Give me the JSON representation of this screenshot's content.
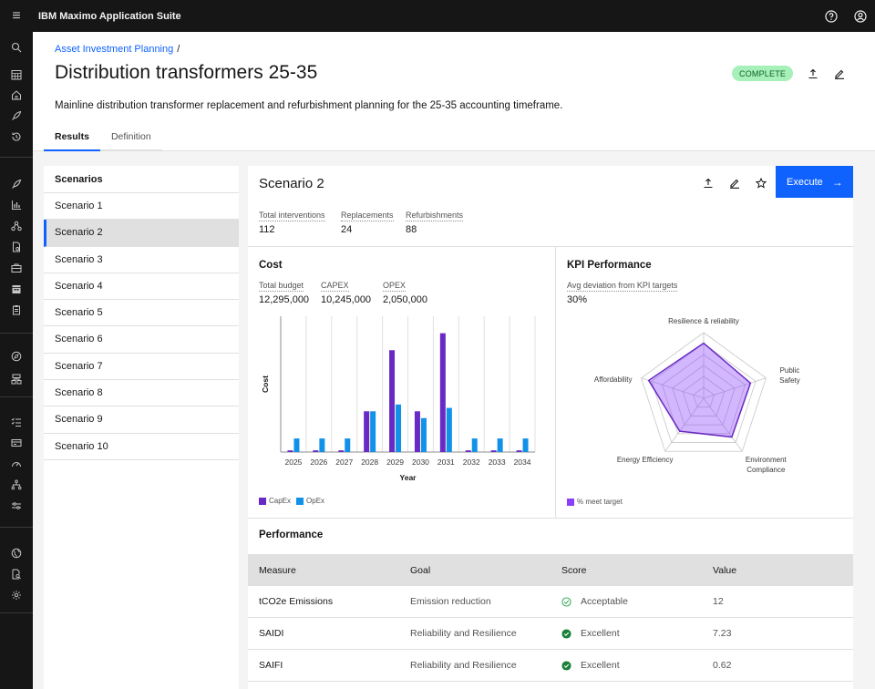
{
  "app": {
    "brand_prefix": "IBM",
    "brand_name": "Maximo Application Suite"
  },
  "topbar": {
    "menu_icon": "hamburger-icon",
    "help_icon": "help-icon",
    "user_icon": "user-icon"
  },
  "header": {
    "breadcrumb": "Asset Investment Planning",
    "breadcrumb_sep": "/",
    "title": "Distribution transformers 25-35",
    "status": "COMPLETE",
    "description": "Mainline distribution transformer replacement and refurbishment planning for the 25-35 accounting timeframe.",
    "tabs": [
      {
        "label": "Results",
        "active": true
      },
      {
        "label": "Definition",
        "active": false
      }
    ]
  },
  "scenarios": {
    "heading": "Scenarios",
    "items": [
      "Scenario 1",
      "Scenario 2",
      "Scenario 3",
      "Scenario 4",
      "Scenario 5",
      "Scenario 6",
      "Scenario 7",
      "Scenario 8",
      "Scenario 9",
      "Scenario 10"
    ],
    "selected": "Scenario 2"
  },
  "detail": {
    "title": "Scenario 2",
    "execute_label": "Execute",
    "stats": [
      {
        "label": "Total interventions",
        "value": "112"
      },
      {
        "label": "Replacements",
        "value": "24"
      },
      {
        "label": "Refurbishments",
        "value": "88"
      }
    ],
    "cost": {
      "title": "Cost",
      "stats": [
        {
          "label": "Total budget",
          "value": "12,295,000"
        },
        {
          "label": "CAPEX",
          "value": "10,245,000"
        },
        {
          "label": "OPEX",
          "value": "2,050,000"
        }
      ]
    },
    "kpi": {
      "title": "KPI Performance",
      "stat_label": "Avg deviation from KPI targets",
      "stat_value": "30%"
    },
    "performance": {
      "title": "Performance",
      "columns": [
        "Measure",
        "Goal",
        "Score",
        "Value"
      ],
      "rows": [
        {
          "measure": "tCO2e Emissions",
          "goal": "Emission reduction",
          "score": "Acceptable",
          "score_type": "outline",
          "value": "12"
        },
        {
          "measure": "SAIDI",
          "goal": "Reliability and Resilience",
          "score": "Excellent",
          "score_type": "filled",
          "value": "7.23"
        },
        {
          "measure": "SAIFI",
          "goal": "Reliability and Resilience",
          "score": "Excellent",
          "score_type": "filled",
          "value": "0.62"
        }
      ]
    }
  },
  "colors": {
    "capex": "#6929c4",
    "opex": "#1192e8",
    "radar": "#8a3ffc",
    "accent": "#0f62fe"
  },
  "chart_data": [
    {
      "type": "bar",
      "xlabel": "Year",
      "ylabel": "Cost",
      "categories": [
        "2025",
        "2026",
        "2027",
        "2028",
        "2029",
        "2030",
        "2031",
        "2032",
        "2033",
        "2034"
      ],
      "series": [
        {
          "name": "CapEx",
          "values": [
            0.5,
            0.5,
            0.5,
            12,
            30,
            12,
            35,
            0.5,
            0.5,
            0.5
          ]
        },
        {
          "name": "OpEx",
          "values": [
            4,
            4,
            4,
            12,
            14,
            10,
            13,
            4,
            4,
            4
          ]
        }
      ]
    },
    {
      "type": "radar",
      "axes": [
        "Resilience & reliability",
        "Public\nSafety",
        "Environment\nCompliance",
        "Energy Efficiency",
        "Affordability"
      ],
      "series": [
        {
          "name": "% meet target",
          "values": [
            0.84,
            0.75,
            0.73,
            0.62,
            0.88
          ]
        }
      ]
    }
  ]
}
